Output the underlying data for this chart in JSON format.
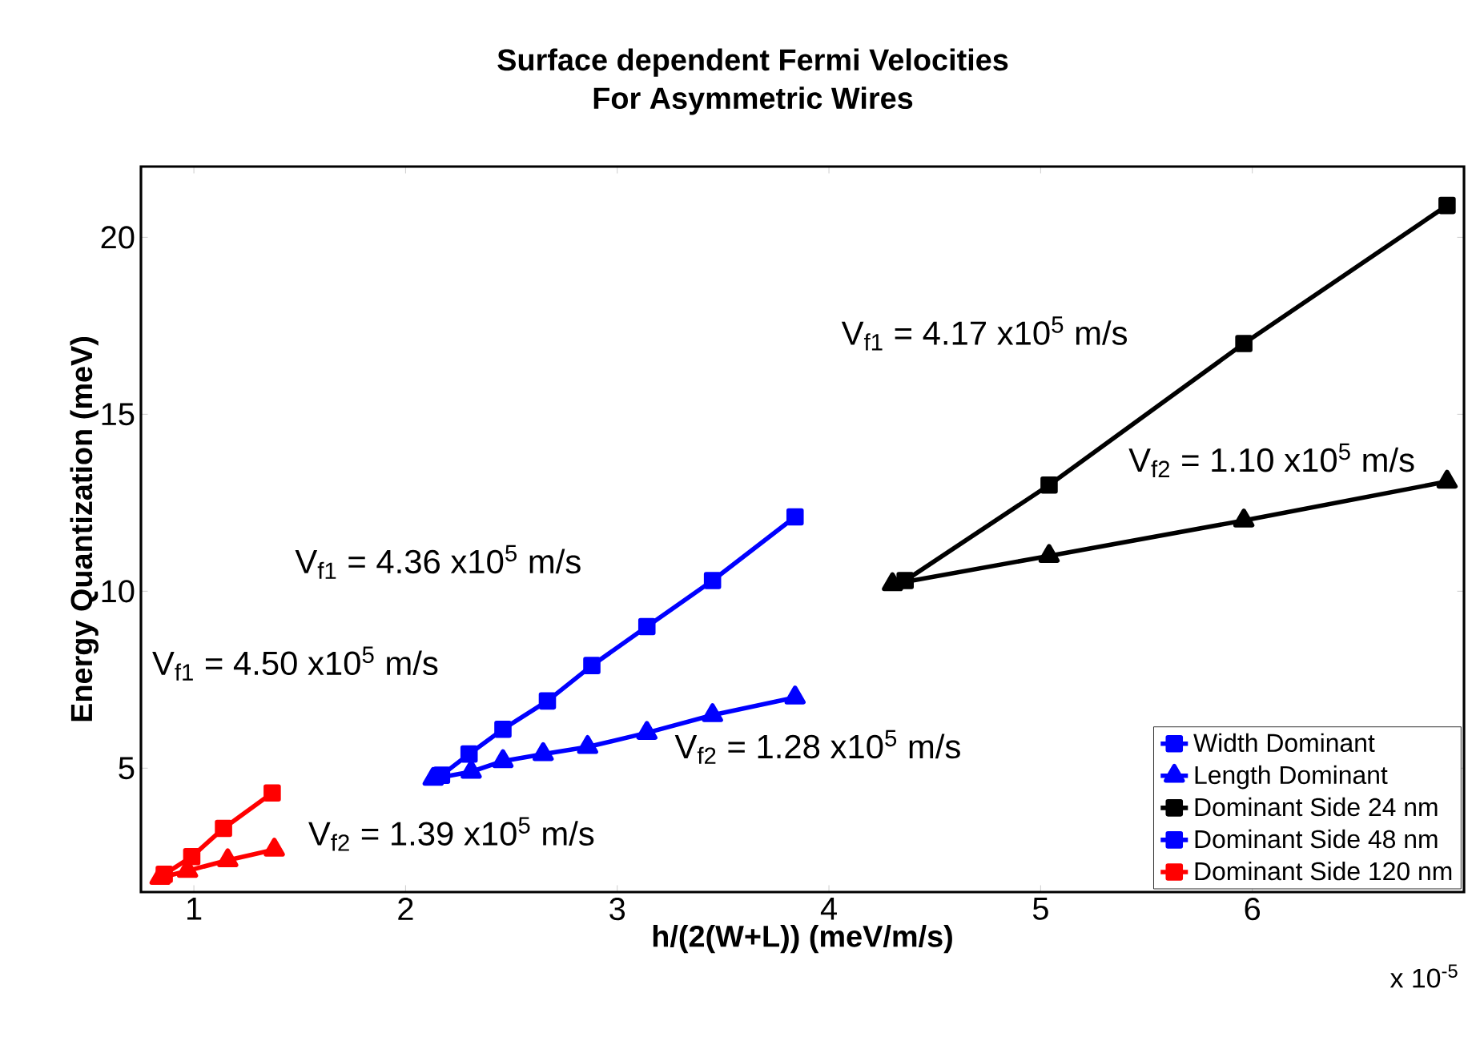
{
  "chart_data": {
    "type": "line",
    "title": "Surface dependent Fermi Velocities\nFor Asymmetric Wires",
    "xlabel": "h/(2(W+L)) (meV/m/s)",
    "ylabel": "Energy Quantization (meV)",
    "xlim": [
      0.75,
      7
    ],
    "ylim": [
      1.5,
      22
    ],
    "xticks": [
      1,
      2,
      3,
      4,
      5,
      6
    ],
    "yticks": [
      5,
      10,
      15,
      20
    ],
    "grid": false,
    "legend": "bottom right",
    "line_style": "solid",
    "series": [
      {
        "name": "Width Dominant",
        "color": "#0000ff",
        "marker": "square",
        "x": [
          2.17,
          2.3,
          2.46,
          2.67,
          2.88,
          3.14,
          3.45,
          3.84
        ],
        "values": [
          4.8,
          5.4,
          6.1,
          6.9,
          7.9,
          9.0,
          10.3,
          12.1
        ]
      },
      {
        "name": "Length Dominant",
        "color": "#0000ff",
        "marker": "triangle",
        "x": [
          2.13,
          2.31,
          2.46,
          2.65,
          2.86,
          3.14,
          3.45,
          3.84
        ],
        "values": [
          4.7,
          4.9,
          5.2,
          5.4,
          5.6,
          6.0,
          6.5,
          7.0
        ]
      },
      {
        "name": "Dominant Side 24 nm",
        "color": "#000000",
        "marker": "square",
        "x": [
          4.36,
          5.04,
          5.96,
          6.92
        ],
        "values": [
          10.3,
          13.0,
          17.0,
          20.9
        ]
      },
      {
        "name": "Dominant Side 48 nm",
        "color": "#0000ff",
        "marker": "square"
      },
      {
        "color": "#ff0000",
        "marker": "triangle",
        "x": [
          0.84,
          0.97,
          1.16,
          1.38
        ],
        "values": [
          1.9,
          2.1,
          2.4,
          2.7
        ]
      },
      {
        "name": "Dominant Side 120 nm",
        "color": "#ff0000",
        "marker": "square",
        "x": [
          0.86,
          0.99,
          1.14,
          1.37
        ],
        "values": [
          2.0,
          2.5,
          3.3,
          4.3
        ]
      },
      {
        "color": "#000000",
        "marker": "triangle",
        "x": [
          4.3,
          5.04,
          5.96,
          6.92
        ],
        "values": [
          10.2,
          11.0,
          12.0,
          13.1
        ]
      }
    ],
    "annotations": [
      "V$_{f1}$ = 4.17 x10$^{5}$ m/s",
      "V$_{f2}$ = 1.10 x10$^{5}$ m/s",
      "V$_{f1}$ = 4.36 x10$^{5}$ m/s",
      "V$_{f1}$ = 4.50 x10$^{5}$ m/s",
      "V$_{f2}$ = 1.28 x10$^{5}$ m/s",
      "V$_{f2}$ = 1.39 x10$^{5}$ m/s",
      "x 10$^{-5}$"
    ]
  }
}
